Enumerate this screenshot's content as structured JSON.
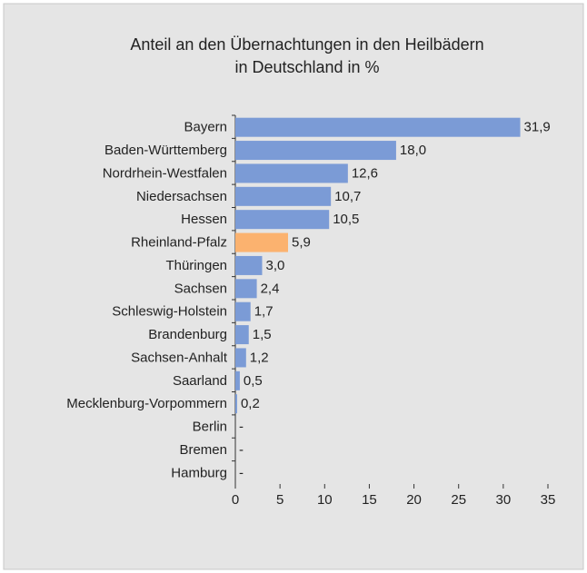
{
  "chart_data": {
    "type": "barh",
    "title": [
      "Anteil an den Übernachtungen in den Heilbädern",
      "in Deutschland in %"
    ],
    "categories": [
      "Bayern",
      "Baden-Württemberg",
      "Nordrhein-Westfalen",
      "Niedersachsen",
      "Hessen",
      "Rheinland-Pfalz",
      "Thüringen",
      "Sachsen",
      "Schleswig-Holstein",
      "Brandenburg",
      "Sachsen-Anhalt",
      "Saarland",
      "Mecklenburg-Vorpommern",
      "Berlin",
      "Bremen",
      "Hamburg"
    ],
    "values": [
      31.9,
      18.0,
      12.6,
      10.7,
      10.5,
      5.9,
      3.0,
      2.4,
      1.7,
      1.5,
      1.2,
      0.5,
      0.2,
      null,
      null,
      null
    ],
    "value_labels": [
      "31,9",
      "18,0",
      "12,6",
      "10,7",
      "10,5",
      "5,9",
      "3,0",
      "2,4",
      "1,7",
      "1,5",
      "1,2",
      "0,5",
      "0,2",
      "-",
      "-",
      "-"
    ],
    "colors": [
      "#7b9bd6",
      "#7b9bd6",
      "#7b9bd6",
      "#7b9bd6",
      "#7b9bd6",
      "#fbb26f",
      "#7b9bd6",
      "#7b9bd6",
      "#7b9bd6",
      "#7b9bd6",
      "#7b9bd6",
      "#7b9bd6",
      "#7b9bd6",
      "#7b9bd6",
      "#7b9bd6",
      "#7b9bd6"
    ],
    "xlim": [
      0,
      35
    ],
    "xticks": [
      0,
      5,
      10,
      15,
      20,
      25,
      30,
      35
    ]
  }
}
